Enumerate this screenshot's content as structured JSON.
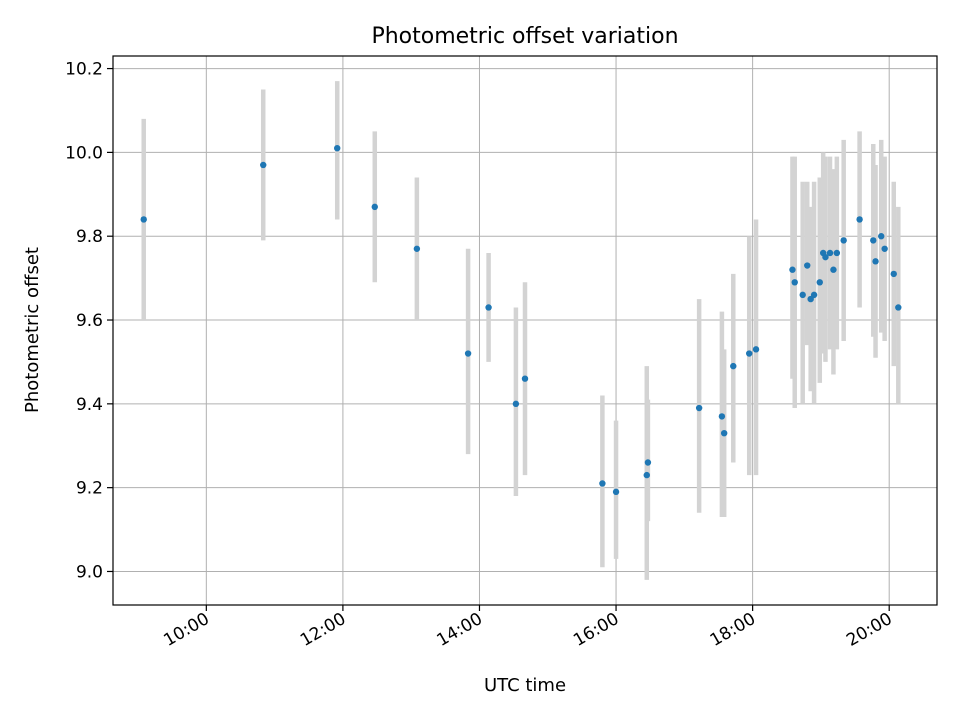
{
  "chart_data": {
    "type": "scatter",
    "title": "Photometric offset variation",
    "xlabel": "UTC time",
    "ylabel": "Photometric offset",
    "x_format": "HH:MM",
    "xlim": [
      "08:38",
      "20:42"
    ],
    "ylim": [
      8.92,
      10.23
    ],
    "xticks": [
      "10:00",
      "12:00",
      "14:00",
      "16:00",
      "18:00",
      "20:00"
    ],
    "yticks": [
      "9.0",
      "9.2",
      "9.4",
      "9.6",
      "9.8",
      "10.0",
      "10.2"
    ],
    "grid": true,
    "legend": "none",
    "colors": {
      "marker": "#1f77b4",
      "errorbar": "#d3d3d3",
      "grid": "#b0b0b0"
    },
    "series": [
      {
        "points": [
          {
            "x": "09:05",
            "y": 9.84,
            "ylo": 9.6,
            "yhi": 10.08
          },
          {
            "x": "10:50",
            "y": 9.97,
            "ylo": 9.79,
            "yhi": 10.15
          },
          {
            "x": "11:55",
            "y": 10.01,
            "ylo": 9.84,
            "yhi": 10.17
          },
          {
            "x": "12:28",
            "y": 9.87,
            "ylo": 9.69,
            "yhi": 10.05
          },
          {
            "x": "13:05",
            "y": 9.77,
            "ylo": 9.6,
            "yhi": 9.94
          },
          {
            "x": "13:50",
            "y": 9.52,
            "ylo": 9.28,
            "yhi": 9.77
          },
          {
            "x": "14:08",
            "y": 9.63,
            "ylo": 9.5,
            "yhi": 9.76
          },
          {
            "x": "14:32",
            "y": 9.4,
            "ylo": 9.18,
            "yhi": 9.63
          },
          {
            "x": "14:40",
            "y": 9.46,
            "ylo": 9.23,
            "yhi": 9.69
          },
          {
            "x": "15:48",
            "y": 9.21,
            "ylo": 9.01,
            "yhi": 9.42
          },
          {
            "x": "16:00",
            "y": 9.19,
            "ylo": 9.03,
            "yhi": 9.36
          },
          {
            "x": "16:27",
            "y": 9.23,
            "ylo": 8.98,
            "yhi": 9.49
          },
          {
            "x": "16:28",
            "y": 9.26,
            "ylo": 9.12,
            "yhi": 9.41
          },
          {
            "x": "17:13",
            "y": 9.39,
            "ylo": 9.14,
            "yhi": 9.65
          },
          {
            "x": "17:33",
            "y": 9.37,
            "ylo": 9.13,
            "yhi": 9.62
          },
          {
            "x": "17:35",
            "y": 9.33,
            "ylo": 9.13,
            "yhi": 9.53
          },
          {
            "x": "17:43",
            "y": 9.49,
            "ylo": 9.26,
            "yhi": 9.71
          },
          {
            "x": "17:57",
            "y": 9.52,
            "ylo": 9.23,
            "yhi": 9.8
          },
          {
            "x": "18:03",
            "y": 9.53,
            "ylo": 9.23,
            "yhi": 9.84
          },
          {
            "x": "18:35",
            "y": 9.72,
            "ylo": 9.46,
            "yhi": 9.99
          },
          {
            "x": "18:37",
            "y": 9.69,
            "ylo": 9.39,
            "yhi": 9.99
          },
          {
            "x": "18:44",
            "y": 9.66,
            "ylo": 9.4,
            "yhi": 9.93
          },
          {
            "x": "18:48",
            "y": 9.73,
            "ylo": 9.54,
            "yhi": 9.93
          },
          {
            "x": "18:51",
            "y": 9.65,
            "ylo": 9.43,
            "yhi": 9.87
          },
          {
            "x": "18:54",
            "y": 9.66,
            "ylo": 9.4,
            "yhi": 9.93
          },
          {
            "x": "18:59",
            "y": 9.69,
            "ylo": 9.45,
            "yhi": 9.94
          },
          {
            "x": "19:02",
            "y": 9.76,
            "ylo": 9.52,
            "yhi": 10.0
          },
          {
            "x": "19:04",
            "y": 9.75,
            "ylo": 9.5,
            "yhi": 9.99
          },
          {
            "x": "19:08",
            "y": 9.76,
            "ylo": 9.53,
            "yhi": 9.99
          },
          {
            "x": "19:11",
            "y": 9.72,
            "ylo": 9.47,
            "yhi": 9.96
          },
          {
            "x": "19:14",
            "y": 9.76,
            "ylo": 9.53,
            "yhi": 9.99
          },
          {
            "x": "19:20",
            "y": 9.79,
            "ylo": 9.55,
            "yhi": 10.03
          },
          {
            "x": "19:34",
            "y": 9.84,
            "ylo": 9.63,
            "yhi": 10.05
          },
          {
            "x": "19:46",
            "y": 9.79,
            "ylo": 9.56,
            "yhi": 10.02
          },
          {
            "x": "19:48",
            "y": 9.74,
            "ylo": 9.51,
            "yhi": 9.97
          },
          {
            "x": "19:53",
            "y": 9.8,
            "ylo": 9.57,
            "yhi": 10.03
          },
          {
            "x": "19:56",
            "y": 9.77,
            "ylo": 9.55,
            "yhi": 9.99
          },
          {
            "x": "20:04",
            "y": 9.71,
            "ylo": 9.49,
            "yhi": 9.93
          },
          {
            "x": "20:08",
            "y": 9.63,
            "ylo": 9.4,
            "yhi": 9.87
          }
        ]
      }
    ]
  }
}
